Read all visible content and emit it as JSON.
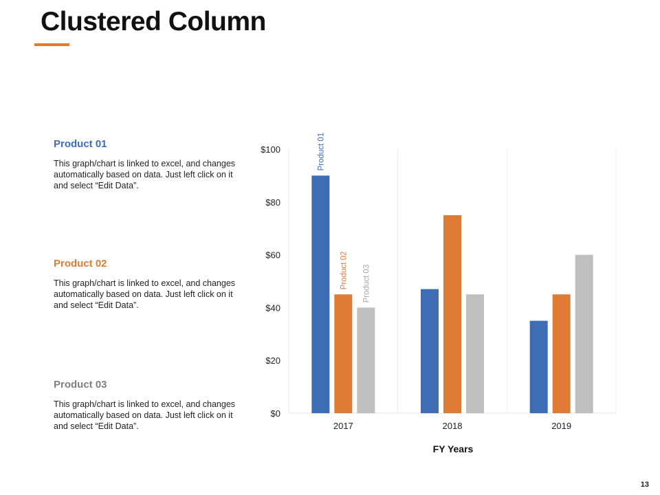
{
  "slide": {
    "title": "Clustered Column",
    "page_number": "13",
    "accent_color": "#E07B35"
  },
  "descriptions": [
    {
      "heading": "Product 01",
      "text": "This graph/chart is linked to excel, and changes automatically based on data. Just left click on it and select “Edit Data”.",
      "color": "#3E6DB5"
    },
    {
      "heading": "Product 02",
      "text": "This graph/chart is linked to excel, and changes automatically based on data. Just left click on it and select “Edit Data”.",
      "color": "#E07B35"
    },
    {
      "heading": "Product 03",
      "text": "This graph/chart is linked to excel, and changes automatically based on data. Just left click on it and select “Edit Data”.",
      "color": "#7F7F7F"
    }
  ],
  "chart_data": {
    "type": "bar",
    "title": "",
    "xlabel": "FY Years",
    "ylabel": "",
    "categories": [
      "2017",
      "2018",
      "2019"
    ],
    "series": [
      {
        "name": "Product 01",
        "values": [
          90,
          47,
          35
        ],
        "color": "#3E6DB5",
        "label_color": "#3E6DB5"
      },
      {
        "name": "Product 02",
        "values": [
          45,
          75,
          45
        ],
        "color": "#E07B35",
        "label_color": "#E07B35"
      },
      {
        "name": "Product 03",
        "values": [
          40,
          45,
          60
        ],
        "color": "#BFBFBF",
        "label_color": "#A6A6A6"
      }
    ],
    "ylim": [
      0,
      100
    ],
    "yticks": [
      0,
      20,
      40,
      60,
      80,
      100
    ],
    "ytick_labels": [
      "$0",
      "$20",
      "$40",
      "$60",
      "$80",
      "$100"
    ],
    "grid": "vertical category separators",
    "legend": "none (series names shown as rotated labels above the 2017 bars)"
  }
}
